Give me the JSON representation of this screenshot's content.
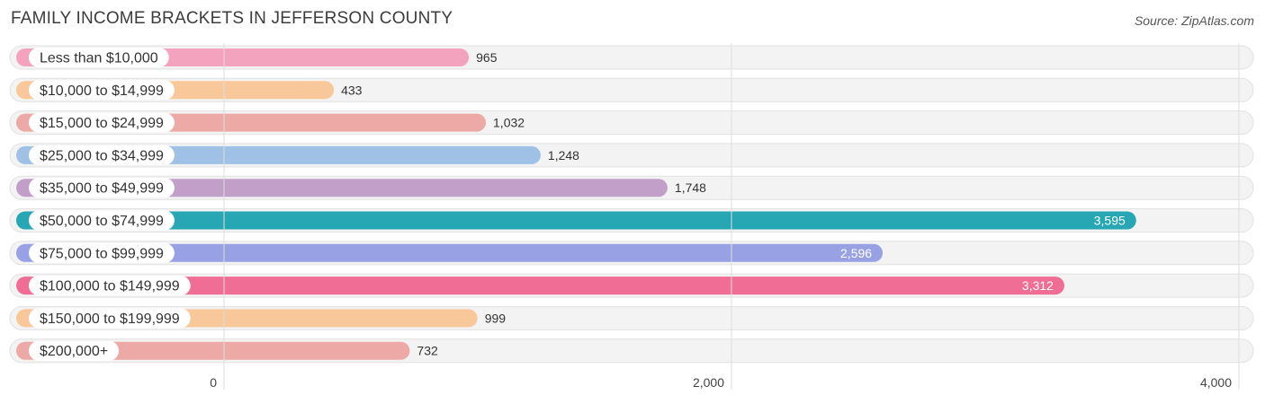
{
  "title": "FAMILY INCOME BRACKETS IN JEFFERSON COUNTY",
  "source": "Source: ZipAtlas.com",
  "chart_data": {
    "type": "bar",
    "orientation": "horizontal",
    "categories": [
      "Less than $10,000",
      "$10,000 to $14,999",
      "$15,000 to $24,999",
      "$25,000 to $34,999",
      "$35,000 to $49,999",
      "$50,000 to $74,999",
      "$75,000 to $99,999",
      "$100,000 to $149,999",
      "$150,000 to $199,999",
      "$200,000+"
    ],
    "values": [
      965,
      433,
      1032,
      1248,
      1748,
      3595,
      2596,
      3312,
      999,
      732
    ],
    "value_labels": [
      "965",
      "433",
      "1,032",
      "1,248",
      "1,748",
      "3,595",
      "2,596",
      "3,312",
      "999",
      "732"
    ],
    "colors": [
      "#f4a3bf",
      "#f9c89a",
      "#eda9a6",
      "#9fc1e6",
      "#c29fc8",
      "#27a6b3",
      "#97a1e3",
      "#f06e96",
      "#f9c89a",
      "#eda9a6"
    ],
    "xlim": [
      0,
      4000
    ],
    "xticks": [
      0,
      2000,
      4000
    ],
    "xtick_labels": [
      "0",
      "2,000",
      "4,000"
    ],
    "grid": true
  }
}
